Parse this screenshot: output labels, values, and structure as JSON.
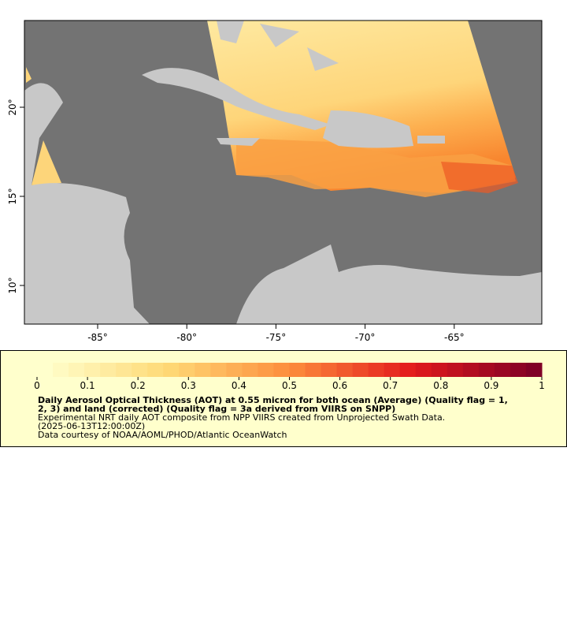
{
  "map": {
    "lon_ticks": [
      "-85°",
      "-80°",
      "-75°",
      "-70°",
      "-65°"
    ],
    "lat_ticks": [
      "20°",
      "15°",
      "10°"
    ]
  },
  "legend": {
    "colorbar_ticks": [
      "0",
      "0.1",
      "0.2",
      "0.3",
      "0.4",
      "0.5",
      "0.6",
      "0.7",
      "0.8",
      "0.9",
      "1"
    ],
    "title_lines": [
      "Daily Aerosol Optical Thickness (AOT) at 0.55 micron for both ocean (Average) (Quality flag = 1,",
      "2, 3) and land (corrected) (Quality flag = 3a derived from VIIRS on SNPP)"
    ],
    "description_lines": [
      "Experimental NRT daily AOT composite from NPP VIIRS created from Unprojected Swath Data.",
      "(2025-06-13T12:00:00Z)",
      "Data courtesy of NOAA/AOML/PHOD/Atlantic OceanWatch"
    ]
  }
}
